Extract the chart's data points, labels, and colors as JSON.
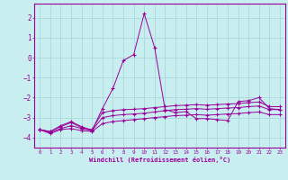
{
  "xlabel": "Windchill (Refroidissement éolien,°C)",
  "background_color": "#c8eef0",
  "grid_color": "#a8d8dc",
  "line_color": "#990099",
  "xlim": [
    -0.5,
    23.5
  ],
  "ylim": [
    -4.5,
    2.7
  ],
  "yticks": [
    -4,
    -3,
    -2,
    -1,
    0,
    1,
    2
  ],
  "xticks": [
    0,
    1,
    2,
    3,
    4,
    5,
    6,
    7,
    8,
    9,
    10,
    11,
    12,
    13,
    14,
    15,
    16,
    17,
    18,
    19,
    20,
    21,
    22,
    23
  ],
  "series": [
    {
      "x": [
        0,
        1,
        2,
        3,
        4,
        5,
        6,
        7,
        8,
        9,
        10,
        11,
        12,
        13,
        14,
        15,
        16,
        17,
        18,
        19,
        20,
        21,
        22,
        23
      ],
      "y": [
        -3.6,
        -3.8,
        -3.6,
        -3.55,
        -3.65,
        -3.7,
        -3.3,
        -3.2,
        -3.15,
        -3.1,
        -3.05,
        -3.0,
        -2.95,
        -2.9,
        -2.88,
        -2.85,
        -2.88,
        -2.85,
        -2.82,
        -2.8,
        -2.75,
        -2.72,
        -2.85,
        -2.85
      ]
    },
    {
      "x": [
        0,
        1,
        2,
        3,
        4,
        5,
        6,
        7,
        8,
        9,
        10,
        11,
        12,
        13,
        14,
        15,
        16,
        17,
        18,
        19,
        20,
        21,
        22,
        23
      ],
      "y": [
        -3.6,
        -3.75,
        -3.55,
        -3.4,
        -3.55,
        -3.65,
        -3.0,
        -2.9,
        -2.85,
        -2.82,
        -2.78,
        -2.72,
        -2.65,
        -2.6,
        -2.58,
        -2.55,
        -2.58,
        -2.55,
        -2.52,
        -2.5,
        -2.45,
        -2.42,
        -2.6,
        -2.6
      ]
    },
    {
      "x": [
        0,
        1,
        2,
        3,
        4,
        5,
        6,
        7,
        8,
        9,
        10,
        11,
        12,
        13,
        14,
        15,
        16,
        17,
        18,
        19,
        20,
        21,
        22,
        23
      ],
      "y": [
        -3.6,
        -3.7,
        -3.45,
        -3.25,
        -3.5,
        -3.6,
        -2.75,
        -2.65,
        -2.6,
        -2.58,
        -2.55,
        -2.5,
        -2.45,
        -2.4,
        -2.38,
        -2.35,
        -2.38,
        -2.35,
        -2.32,
        -2.3,
        -2.25,
        -2.22,
        -2.45,
        -2.45
      ]
    },
    {
      "x": [
        0,
        1,
        2,
        3,
        4,
        5,
        6,
        7,
        8,
        9,
        10,
        11,
        12,
        13,
        14,
        15,
        16,
        17,
        18,
        19,
        20,
        21,
        22,
        23
      ],
      "y": [
        -3.6,
        -3.7,
        -3.4,
        -3.2,
        -3.45,
        -3.65,
        -2.55,
        -1.55,
        -0.15,
        0.15,
        2.2,
        0.5,
        -2.6,
        -2.75,
        -2.7,
        -3.05,
        -3.05,
        -3.1,
        -3.15,
        -2.2,
        -2.15,
        -2.0,
        -2.55,
        -2.6
      ]
    }
  ]
}
